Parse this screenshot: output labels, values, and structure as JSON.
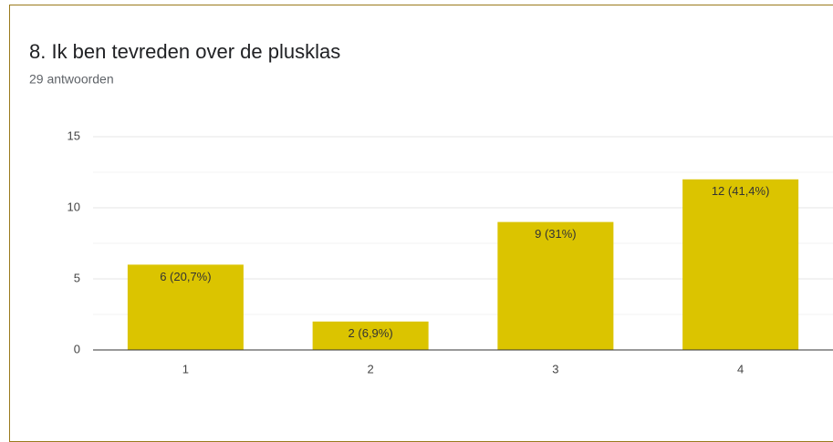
{
  "chart_data": {
    "type": "bar",
    "title": "8. Ik ben tevreden over de plusklas",
    "subtitle": "29 antwoorden",
    "categories": [
      "1",
      "2",
      "3",
      "4"
    ],
    "values": [
      6,
      2,
      9,
      12
    ],
    "value_labels": [
      "6 (20,7%)",
      "2 (6,9%)",
      "9 (31%)",
      "12 (41,4%)"
    ],
    "color": "#dbc400",
    "ylim": [
      0,
      15
    ],
    "yticks": [
      0,
      5,
      10,
      15
    ],
    "minor_yticks": [
      2.5,
      7.5,
      12.5
    ],
    "grid": true
  }
}
